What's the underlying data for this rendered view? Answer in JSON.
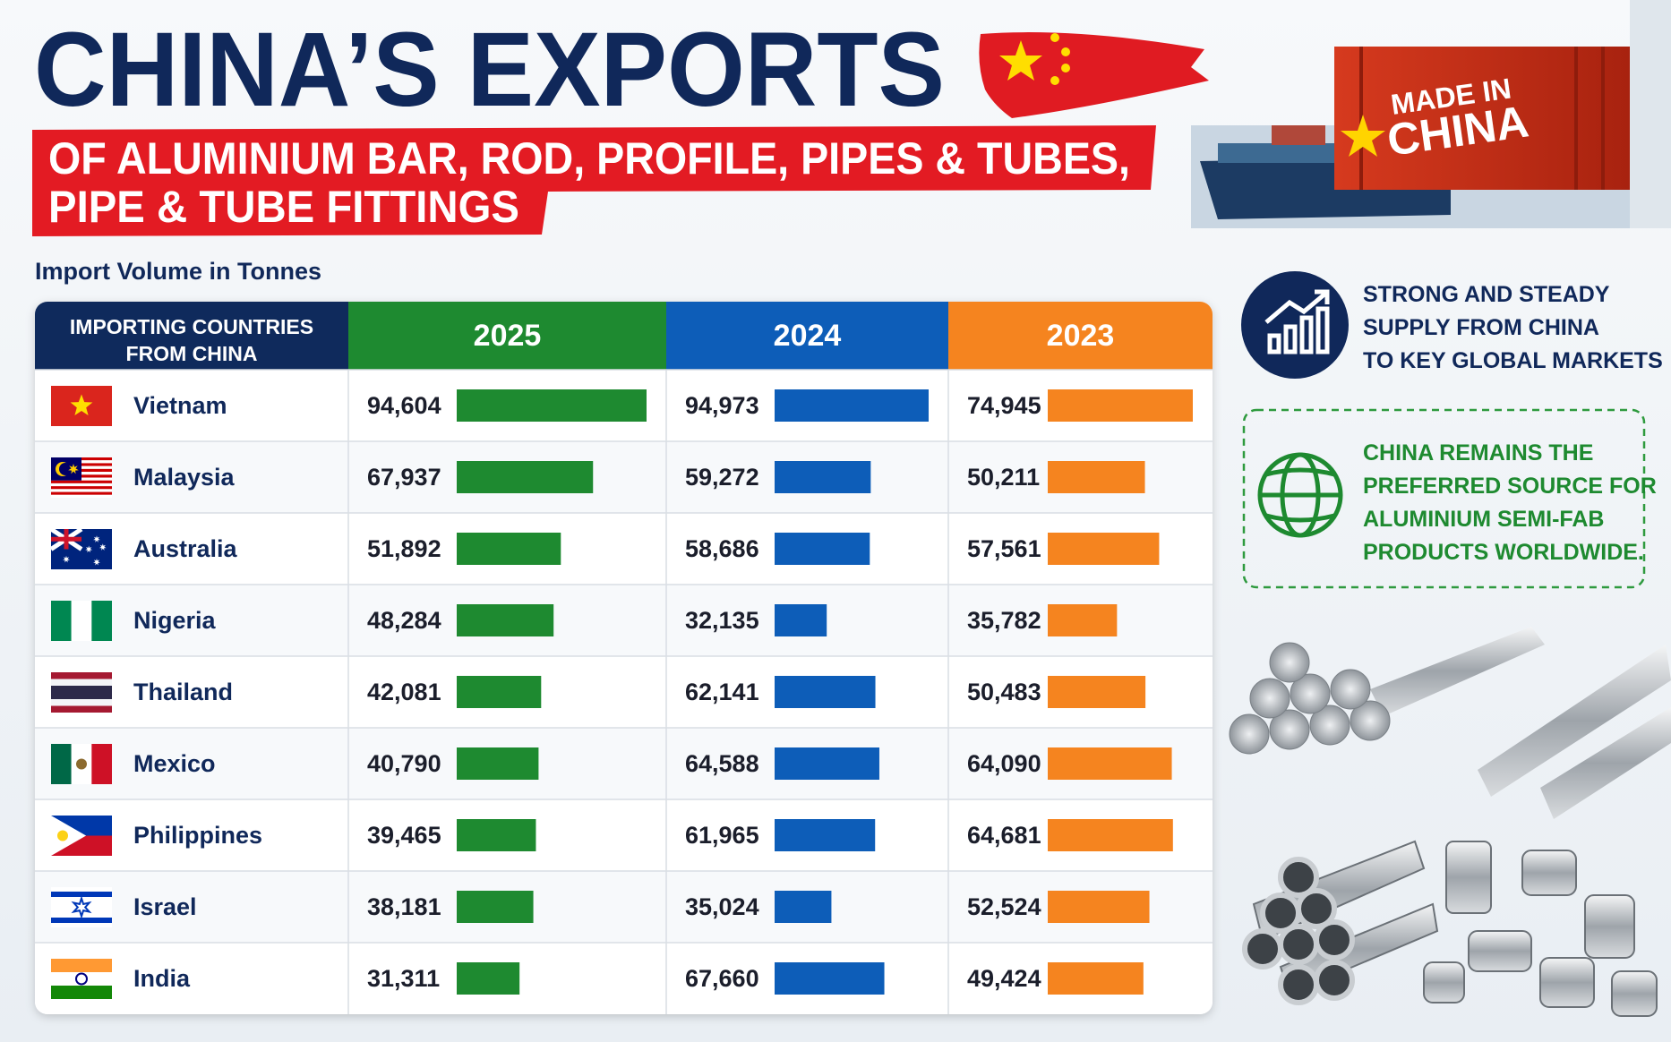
{
  "header": {
    "title": "CHINA’S EXPORTS",
    "subtitle_lines": [
      "OF ALUMINIUM BAR, ROD, PROFILE, PIPES & TUBES,",
      "PIPE & TUBE FITTINGS"
    ]
  },
  "container_label": [
    "MADE IN",
    "CHINA"
  ],
  "table": {
    "caption": "Import Volume in Tonnes",
    "country_header": [
      "IMPORTING COUNTRIES",
      "FROM CHINA"
    ],
    "years": [
      {
        "label": "2025",
        "color": "#1e8a30"
      },
      {
        "label": "2024",
        "color": "#0d5db8"
      },
      {
        "label": "2023",
        "color": "#f5841f"
      }
    ],
    "rows": [
      {
        "country": "Vietnam",
        "values": [
          94604,
          94973,
          74945
        ],
        "value_labels": [
          "94,604",
          "94,973",
          "74,945"
        ]
      },
      {
        "country": "Malaysia",
        "values": [
          67937,
          59272,
          50211
        ],
        "value_labels": [
          "67,937",
          "59,272",
          "50,211"
        ]
      },
      {
        "country": "Australia",
        "values": [
          51892,
          58686,
          57561
        ],
        "value_labels": [
          "51,892",
          "58,686",
          "57,561"
        ]
      },
      {
        "country": "Nigeria",
        "values": [
          48284,
          32135,
          35782
        ],
        "value_labels": [
          "48,284",
          "32,135",
          "35,782"
        ]
      },
      {
        "country": "Thailand",
        "values": [
          42081,
          62141,
          50483
        ],
        "value_labels": [
          "42,081",
          "62,141",
          "50,483"
        ]
      },
      {
        "country": "Mexico",
        "values": [
          40790,
          64588,
          64090
        ],
        "value_labels": [
          "40,790",
          "64,588",
          "64,090"
        ]
      },
      {
        "country": "Philippines",
        "values": [
          39465,
          61965,
          64681
        ],
        "value_labels": [
          "39,465",
          "61,965",
          "64,681"
        ]
      },
      {
        "country": "Israel",
        "values": [
          38181,
          35024,
          52524
        ],
        "value_labels": [
          "38,181",
          "35,024",
          "52,524"
        ]
      },
      {
        "country": "India",
        "values": [
          31311,
          67660,
          49424
        ],
        "value_labels": [
          "31,311",
          "67,660",
          "49,424"
        ]
      }
    ]
  },
  "notes": {
    "supply": [
      "STRONG AND STEADY",
      "SUPPLY FROM CHINA",
      "TO KEY GLOBAL MARKETS"
    ],
    "preferred": [
      "CHINA REMAINS THE",
      "PREFERRED SOURCE FOR",
      "ALUMINIUM SEMI-FAB",
      "PRODUCTS WORLDWIDE."
    ]
  }
}
